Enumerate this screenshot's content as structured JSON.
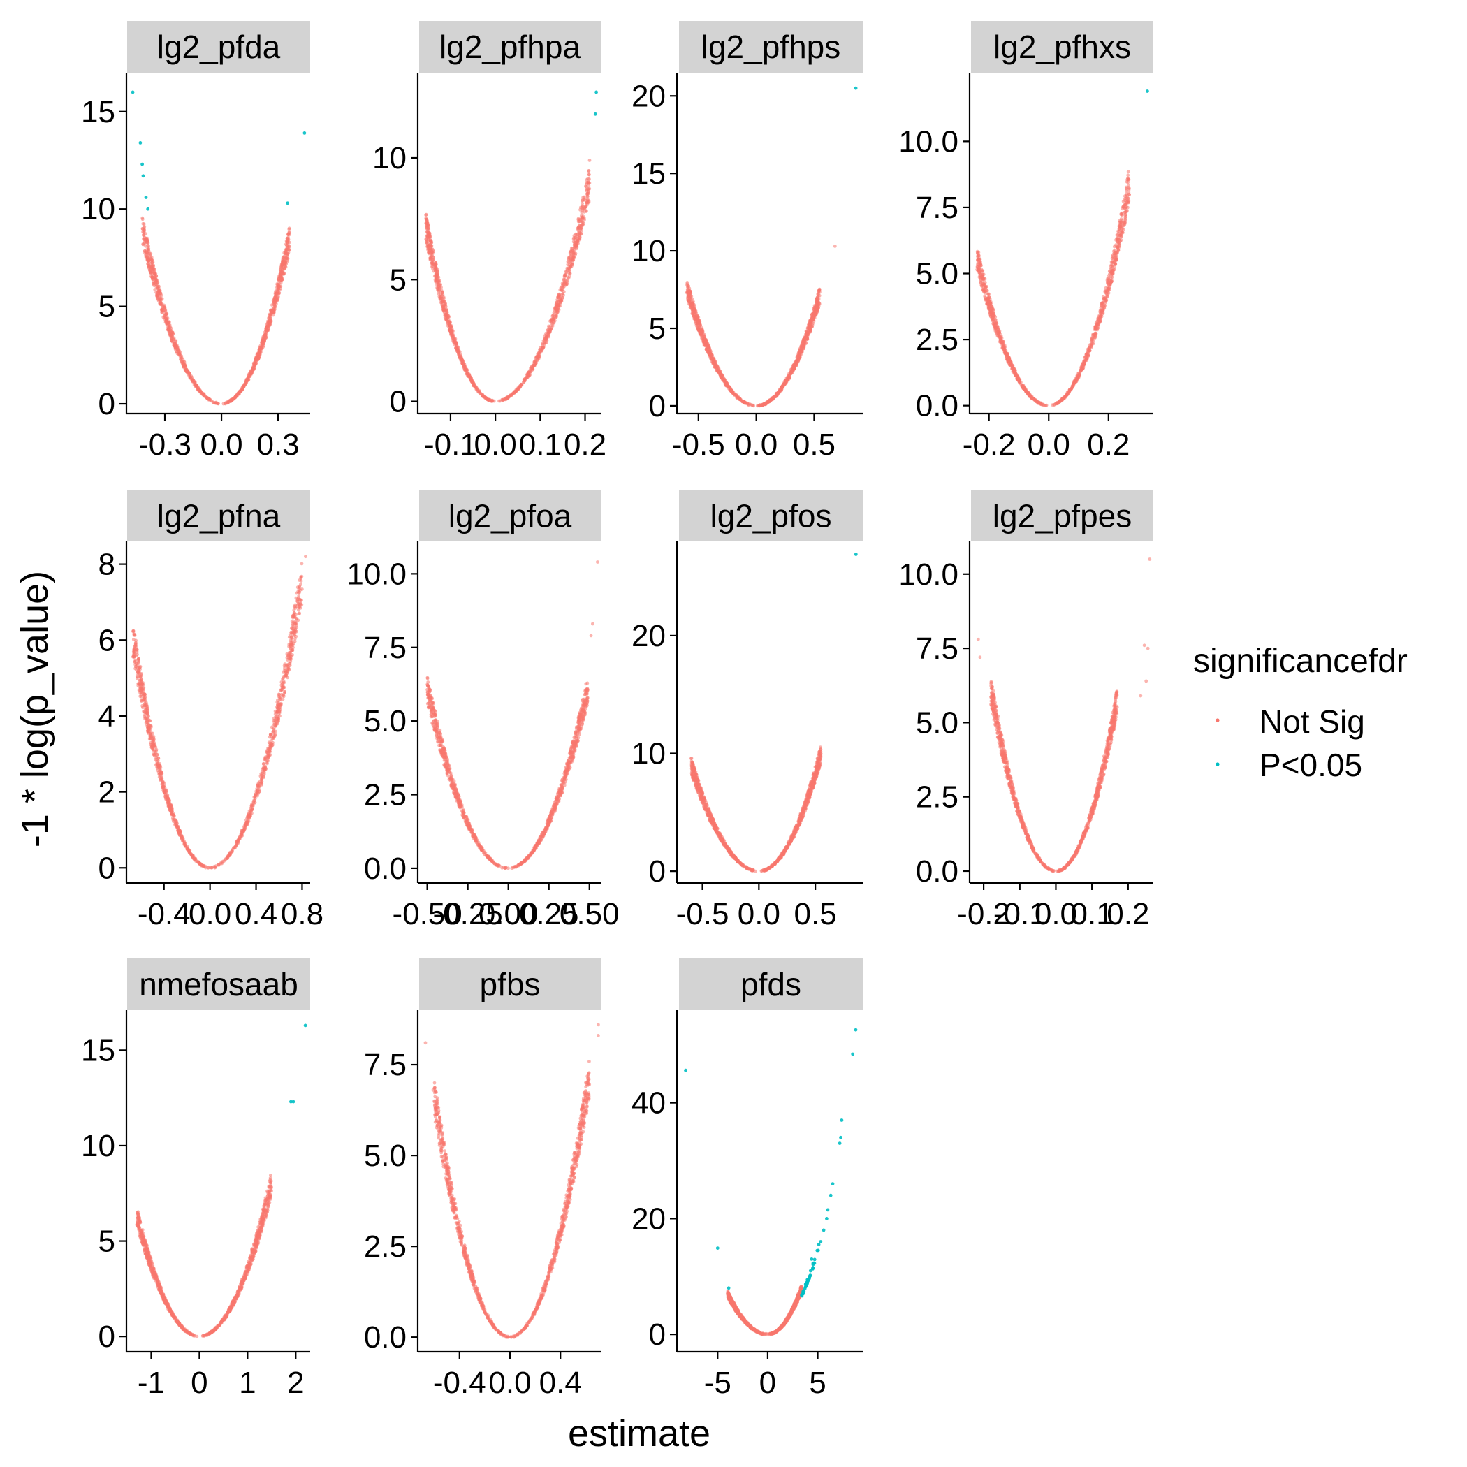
{
  "colors": {
    "not_sig": "#F8766D",
    "sig": "#00BFC4",
    "strip_fill": "#D3D3D3",
    "axis": "#000000",
    "background": "#FFFFFF"
  },
  "chart_data": {
    "type": "scatter",
    "xlabel": "estimate",
    "ylabel": "-1 * log(p_value)",
    "legend": {
      "title": "significancefdr",
      "placement": "right",
      "entries": [
        {
          "label": "Not Sig",
          "color": "#F8766D"
        },
        {
          "label": "P<0.05",
          "color": "#00BFC4"
        }
      ]
    },
    "grid": false,
    "facets": [
      {
        "label": "lg2_pfda",
        "xlim": [
          -0.5,
          0.47
        ],
        "ylim": [
          -0.5,
          17
        ],
        "xticks": [
          -0.3,
          0.0,
          0.3
        ],
        "xtick_labels": [
          "-0.3",
          "0.0",
          "0.3"
        ],
        "yticks": [
          0,
          5,
          10,
          15
        ],
        "ytick_labels": [
          "0",
          "5",
          "10",
          "15"
        ],
        "curve": {
          "left": {
            "x0": -0.42,
            "y0": 9.0
          },
          "right": {
            "x0": 0.36,
            "y0": 8.5
          }
        },
        "outliers": [
          {
            "x": -0.47,
            "y": 16.0,
            "sig": true
          },
          {
            "x": -0.43,
            "y": 13.4,
            "sig": true
          },
          {
            "x": -0.42,
            "y": 12.3,
            "sig": true
          },
          {
            "x": -0.415,
            "y": 11.7,
            "sig": true
          },
          {
            "x": -0.4,
            "y": 10.6,
            "sig": true
          },
          {
            "x": -0.39,
            "y": 10.0,
            "sig": true
          },
          {
            "x": 0.44,
            "y": 13.9,
            "sig": true
          },
          {
            "x": 0.35,
            "y": 10.3,
            "sig": true
          }
        ]
      },
      {
        "label": "lg2_pfhpa",
        "xlim": [
          -0.17,
          0.235
        ],
        "ylim": [
          -0.5,
          13.5
        ],
        "xticks": [
          -0.1,
          0.0,
          0.1,
          0.2
        ],
        "xtick_labels": [
          "-0.1",
          "0.0",
          "0.1",
          "0.2"
        ],
        "yticks": [
          0,
          5,
          10
        ],
        "ytick_labels": [
          "0",
          "5",
          "10"
        ],
        "curve": {
          "left": {
            "x0": -0.155,
            "y0": 7.2
          },
          "right": {
            "x0": 0.21,
            "y0": 9.0
          }
        },
        "outliers": [
          {
            "x": 0.225,
            "y": 12.7,
            "sig": true
          },
          {
            "x": 0.223,
            "y": 11.8,
            "sig": true
          },
          {
            "x": 0.21,
            "y": 9.9,
            "sig": false
          }
        ]
      },
      {
        "label": "lg2_pfhps",
        "xlim": [
          -0.68,
          0.92
        ],
        "ylim": [
          -0.5,
          21.5
        ],
        "xticks": [
          -0.5,
          0.0,
          0.5
        ],
        "xtick_labels": [
          "-0.5",
          "0.0",
          "0.5"
        ],
        "yticks": [
          0,
          5,
          10,
          15,
          20
        ],
        "ytick_labels": [
          "0",
          "5",
          "10",
          "15",
          "20"
        ],
        "curve": {
          "left": {
            "x0": -0.6,
            "y0": 7.6
          },
          "right": {
            "x0": 0.55,
            "y0": 7.2
          }
        },
        "outliers": [
          {
            "x": 0.86,
            "y": 20.5,
            "sig": true
          },
          {
            "x": 0.68,
            "y": 10.3,
            "sig": false
          }
        ]
      },
      {
        "label": "lg2_pfhxs",
        "xlim": [
          -0.26,
          0.35
        ],
        "ylim": [
          -0.3,
          12.6
        ],
        "xticks": [
          -0.2,
          0.0,
          0.2
        ],
        "xtick_labels": [
          "-0.2",
          "0.0",
          "0.2"
        ],
        "yticks": [
          0,
          2.5,
          5,
          7.5,
          10
        ],
        "ytick_labels": [
          "0.0",
          "2.5",
          "5.0",
          "7.5",
          "10.0"
        ],
        "curve": {
          "left": {
            "x0": -0.24,
            "y0": 5.6
          },
          "right": {
            "x0": 0.27,
            "y0": 8.4
          }
        },
        "outliers": [
          {
            "x": 0.33,
            "y": 11.9,
            "sig": true
          }
        ]
      },
      {
        "label": "lg2_pfna",
        "xlim": [
          -0.72,
          0.87
        ],
        "ylim": [
          -0.4,
          8.6
        ],
        "xticks": [
          -0.4,
          0.0,
          0.4,
          0.8
        ],
        "xtick_labels": [
          "-0.4",
          "0.0",
          "0.4",
          "0.8"
        ],
        "yticks": [
          0,
          2,
          4,
          6,
          8
        ],
        "ytick_labels": [
          "0",
          "2",
          "4",
          "6",
          "8"
        ],
        "curve": {
          "left": {
            "x0": -0.67,
            "y0": 6.0
          },
          "right": {
            "x0": 0.8,
            "y0": 7.6
          }
        },
        "outliers": [
          {
            "x": 0.83,
            "y": 8.2,
            "sig": false
          }
        ]
      },
      {
        "label": "lg2_pfoa",
        "xlim": [
          -0.55,
          0.57
        ],
        "ylim": [
          -0.5,
          11.1
        ],
        "xticks": [
          -0.5,
          -0.25,
          0.0,
          0.25,
          0.5
        ],
        "xtick_labels": [
          "-0.50",
          "-0.25",
          "0.00",
          "0.25",
          "0.50"
        ],
        "yticks": [
          0,
          2.5,
          5,
          7.5,
          10
        ],
        "ytick_labels": [
          "0.0",
          "2.5",
          "5.0",
          "7.5",
          "10.0"
        ],
        "curve": {
          "left": {
            "x0": -0.5,
            "y0": 6.1
          },
          "right": {
            "x0": 0.49,
            "y0": 6.1
          }
        },
        "outliers": [
          {
            "x": 0.55,
            "y": 10.4,
            "sig": false
          },
          {
            "x": 0.52,
            "y": 8.3,
            "sig": false
          },
          {
            "x": 0.51,
            "y": 7.9,
            "sig": false
          }
        ]
      },
      {
        "label": "lg2_pfos",
        "xlim": [
          -0.72,
          0.92
        ],
        "ylim": [
          -1,
          28
        ],
        "xticks": [
          -0.5,
          0.0,
          0.5
        ],
        "xtick_labels": [
          "-0.5",
          "0.0",
          "0.5"
        ],
        "yticks": [
          0,
          10,
          20
        ],
        "ytick_labels": [
          "0",
          "10",
          "20"
        ],
        "curve": {
          "left": {
            "x0": -0.6,
            "y0": 9.0
          },
          "right": {
            "x0": 0.55,
            "y0": 10.0
          }
        },
        "outliers": [
          {
            "x": 0.86,
            "y": 26.9,
            "sig": true
          }
        ]
      },
      {
        "label": "lg2_pfpes",
        "xlim": [
          -0.235,
          0.27
        ],
        "ylim": [
          -0.4,
          11.1
        ],
        "xticks": [
          -0.2,
          -0.1,
          0.0,
          0.1,
          0.2
        ],
        "xtick_labels": [
          "-0.2",
          "-0.1",
          "0.0",
          "0.1",
          "0.2"
        ],
        "yticks": [
          0,
          2.5,
          5,
          7.5,
          10
        ],
        "ytick_labels": [
          "0.0",
          "2.5",
          "5.0",
          "7.5",
          "10.0"
        ],
        "curve": {
          "left": {
            "x0": -0.18,
            "y0": 6.1
          },
          "right": {
            "x0": 0.17,
            "y0": 5.8
          }
        },
        "outliers": [
          {
            "x": 0.26,
            "y": 10.5,
            "sig": false
          },
          {
            "x": -0.215,
            "y": 7.8,
            "sig": false
          },
          {
            "x": -0.21,
            "y": 7.2,
            "sig": false
          },
          {
            "x": 0.245,
            "y": 7.6,
            "sig": false
          },
          {
            "x": 0.255,
            "y": 7.5,
            "sig": false
          },
          {
            "x": 0.25,
            "y": 6.4,
            "sig": false
          },
          {
            "x": 0.235,
            "y": 5.9,
            "sig": false
          }
        ]
      },
      {
        "label": "nmefosaab",
        "xlim": [
          -1.5,
          2.3
        ],
        "ylim": [
          -0.8,
          17.1
        ],
        "xticks": [
          -1,
          0,
          1,
          2
        ],
        "xtick_labels": [
          "-1",
          "0",
          "1",
          "2"
        ],
        "yticks": [
          0,
          5,
          10,
          15
        ],
        "ytick_labels": [
          "0",
          "5",
          "10",
          "15"
        ],
        "curve": {
          "left": {
            "x0": -1.3,
            "y0": 6.3
          },
          "right": {
            "x0": 1.5,
            "y0": 8.0
          }
        },
        "outliers": [
          {
            "x": 2.2,
            "y": 16.3,
            "sig": true
          },
          {
            "x": 1.9,
            "y": 12.3,
            "sig": true
          },
          {
            "x": 1.95,
            "y": 12.3,
            "sig": true
          }
        ]
      },
      {
        "label": "pfbs",
        "xlim": [
          -0.72,
          0.72
        ],
        "ylim": [
          -0.4,
          9.0
        ],
        "xticks": [
          -0.4,
          0.0,
          0.4
        ],
        "xtick_labels": [
          "-0.4",
          "0.0",
          "0.4"
        ],
        "yticks": [
          0,
          2.5,
          5,
          7.5
        ],
        "ytick_labels": [
          "0.0",
          "2.5",
          "5.0",
          "7.5"
        ],
        "curve": {
          "left": {
            "x0": -0.6,
            "y0": 6.6
          },
          "right": {
            "x0": 0.63,
            "y0": 7.2
          }
        },
        "outliers": [
          {
            "x": -0.67,
            "y": 8.1,
            "sig": false
          },
          {
            "x": -0.61,
            "y": 6.8,
            "sig": false
          },
          {
            "x": -0.6,
            "y": 6.5,
            "sig": false
          },
          {
            "x": 0.7,
            "y": 8.6,
            "sig": false
          },
          {
            "x": 0.7,
            "y": 8.3,
            "sig": false
          }
        ]
      },
      {
        "label": "pfds",
        "xlim": [
          -9,
          9.5
        ],
        "ylim": [
          -3,
          56
        ],
        "xticks": [
          -5,
          0,
          5
        ],
        "xtick_labels": [
          "-5",
          "0",
          "5"
        ],
        "yticks": [
          0,
          20,
          40
        ],
        "ytick_labels": [
          "0",
          "20",
          "40"
        ],
        "curve": {
          "left": {
            "x0": -4.0,
            "y0": 7.0
          },
          "right": {
            "x0": 3.4,
            "y0": 8.0
          }
        },
        "sig_curve": {
          "x_from": 3.4,
          "x_to": 5.2,
          "k": 0.58
        },
        "outliers": [
          {
            "x": 8.8,
            "y": 52.6,
            "sig": true
          },
          {
            "x": 8.5,
            "y": 48.4,
            "sig": true
          },
          {
            "x": -8.2,
            "y": 45.6,
            "sig": true
          },
          {
            "x": 7.4,
            "y": 37.0,
            "sig": true
          },
          {
            "x": 7.3,
            "y": 34.0,
            "sig": true
          },
          {
            "x": 7.2,
            "y": 33.0,
            "sig": true
          },
          {
            "x": 6.5,
            "y": 26.0,
            "sig": true
          },
          {
            "x": 6.3,
            "y": 24.0,
            "sig": true
          },
          {
            "x": 6.0,
            "y": 21.5,
            "sig": true
          },
          {
            "x": 5.9,
            "y": 20.0,
            "sig": true
          },
          {
            "x": 5.6,
            "y": 18.0,
            "sig": true
          },
          {
            "x": 5.3,
            "y": 16.0,
            "sig": true
          },
          {
            "x": -5.0,
            "y": 14.9,
            "sig": true
          },
          {
            "x": -3.9,
            "y": 8.0,
            "sig": true
          },
          {
            "x": 4.4,
            "y": 13.0,
            "sig": true
          }
        ]
      }
    ]
  }
}
